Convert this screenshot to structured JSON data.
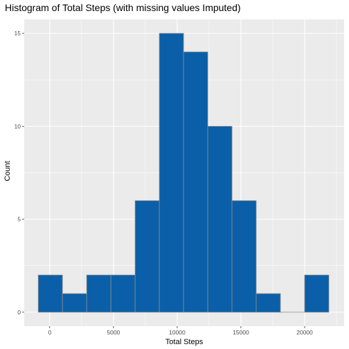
{
  "chart_data": {
    "type": "bar",
    "title": "Histogram of Total Steps (with missing values Imputed)",
    "xlabel": "Total Steps",
    "ylabel": "Count",
    "bin_width": 1900,
    "bins": [
      {
        "x0": -900,
        "x1": 1000,
        "count": 2
      },
      {
        "x0": 1000,
        "x1": 2900,
        "count": 1
      },
      {
        "x0": 2900,
        "x1": 4800,
        "count": 2
      },
      {
        "x0": 4800,
        "x1": 6700,
        "count": 2
      },
      {
        "x0": 6700,
        "x1": 8600,
        "count": 6
      },
      {
        "x0": 8600,
        "x1": 10500,
        "count": 15
      },
      {
        "x0": 10500,
        "x1": 12400,
        "count": 14
      },
      {
        "x0": 12400,
        "x1": 14300,
        "count": 10
      },
      {
        "x0": 14300,
        "x1": 16200,
        "count": 6
      },
      {
        "x0": 16200,
        "x1": 18100,
        "count": 1
      },
      {
        "x0": 18100,
        "x1": 20000,
        "count": 0
      },
      {
        "x0": 20000,
        "x1": 21900,
        "count": 2
      }
    ],
    "xlim": [
      -2000,
      23100
    ],
    "ylim": [
      -0.75,
      15.75
    ],
    "x_ticks": [
      0,
      5000,
      10000,
      15000,
      20000
    ],
    "x_tick_labels": [
      "0",
      "5000",
      "10000",
      "15000",
      "20000"
    ],
    "y_ticks": [
      0,
      5,
      10,
      15
    ],
    "y_tick_labels": [
      "0",
      "5",
      "10",
      "15"
    ],
    "grid": true,
    "bar_fill": "#0a5fa8",
    "bar_outline": "#8c8c8c",
    "panel_background": "#ebebeb",
    "grid_color": "#ffffff"
  }
}
